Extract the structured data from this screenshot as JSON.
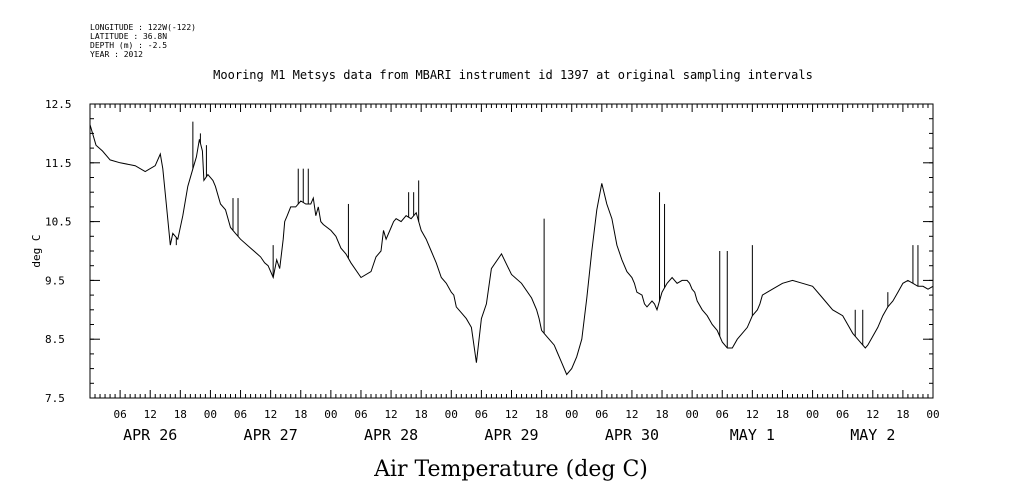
{
  "meta": {
    "longitude": "LONGITUDE : 122W(-122)",
    "latitude": "LATITUDE : 36.8N",
    "depth": "DEPTH (m) : -2.5",
    "year": "YEAR : 2012"
  },
  "chart_data": {
    "type": "line",
    "title": "Mooring M1 Metsys data from MBARI instrument id 1397 at original sampling intervals",
    "xlabel": "Air Temperature (deg C)",
    "ylabel": "deg C",
    "ylim": [
      7.5,
      12.5
    ],
    "yticks": [
      "12.5",
      "11.5",
      "10.5",
      "9.5",
      "8.5",
      "7.5"
    ],
    "xlim_hours": [
      0,
      168
    ],
    "hour_ticks": [
      "06",
      "12",
      "18",
      "00",
      "06",
      "12",
      "18",
      "00",
      "06",
      "12",
      "18",
      "00",
      "06",
      "12",
      "18",
      "00",
      "06",
      "12",
      "18",
      "00",
      "06",
      "12",
      "18",
      "00",
      "06",
      "12",
      "18",
      "00"
    ],
    "day_labels": [
      "APR 26",
      "APR 27",
      "APR 28",
      "APR 29",
      "APR 30",
      "MAY  1",
      "MAY  2"
    ],
    "line_color": "#000000",
    "grid": false,
    "series": [
      {
        "x": [
          0,
          1.2,
          2.5,
          4,
          6,
          9,
          11,
          13,
          14,
          14.5,
          15.2,
          16,
          16.5,
          17.5,
          18.5,
          19.5,
          20.5,
          21.2,
          21.8,
          22.4,
          22.7,
          23.5,
          24.5,
          25,
          26,
          27,
          28,
          29,
          30,
          32,
          34,
          34.8,
          35.5,
          36.5,
          37.2,
          37.8,
          38.5,
          38.8,
          39.3,
          40,
          41,
          42,
          43,
          44,
          44.5,
          45,
          45.5,
          46,
          46.5,
          48,
          49,
          50,
          51,
          52,
          54,
          56,
          57,
          58,
          58.5,
          59,
          60,
          60.5,
          61,
          62,
          63,
          64,
          65,
          66,
          67,
          68,
          69,
          70,
          71,
          72,
          72.5,
          73,
          74,
          75,
          76,
          77,
          78,
          79,
          80,
          82,
          84,
          86,
          88,
          89,
          89.5,
          90,
          91,
          92,
          92.5,
          93,
          94,
          95,
          96,
          97,
          98,
          99,
          100,
          101,
          102,
          103,
          104,
          105,
          106,
          107,
          108,
          108.5,
          109,
          110,
          110.5,
          111,
          112,
          112.5,
          113,
          114,
          115,
          116,
          117,
          118,
          118.5,
          119,
          119.5,
          120,
          120.5,
          121,
          122,
          123,
          124,
          125,
          126,
          127,
          128,
          129,
          130,
          131,
          132,
          133,
          133.5,
          134,
          136,
          138,
          140,
          142,
          144,
          146,
          148,
          150,
          151,
          152,
          153,
          154,
          154.5,
          155,
          156,
          157,
          158,
          159,
          160,
          161,
          162,
          163,
          164,
          165,
          166,
          167,
          168
        ],
        "y": [
          12.15,
          11.8,
          11.7,
          11.55,
          11.5,
          11.45,
          11.35,
          11.45,
          11.65,
          11.4,
          10.8,
          10.1,
          10.3,
          10.2,
          10.6,
          11.1,
          11.4,
          11.6,
          11.9,
          11.7,
          11.2,
          11.3,
          11.2,
          11.1,
          10.8,
          10.7,
          10.4,
          10.3,
          10.2,
          10.05,
          9.9,
          9.8,
          9.75,
          9.55,
          9.85,
          9.7,
          10.2,
          10.5,
          10.6,
          10.75,
          10.75,
          10.85,
          10.8,
          10.8,
          10.9,
          10.6,
          10.75,
          10.5,
          10.45,
          10.35,
          10.25,
          10.05,
          9.95,
          9.8,
          9.55,
          9.65,
          9.9,
          10.0,
          10.35,
          10.2,
          10.4,
          10.5,
          10.55,
          10.5,
          10.6,
          10.55,
          10.65,
          10.35,
          10.2,
          10.0,
          9.8,
          9.55,
          9.45,
          9.3,
          9.25,
          9.05,
          8.95,
          8.85,
          8.7,
          8.1,
          8.85,
          9.1,
          9.7,
          9.95,
          9.6,
          9.45,
          9.2,
          9.0,
          8.85,
          8.65,
          8.55,
          8.45,
          8.4,
          8.3,
          8.1,
          7.9,
          8.0,
          8.2,
          8.5,
          9.2,
          10.0,
          10.7,
          11.15,
          10.8,
          10.55,
          10.1,
          9.85,
          9.65,
          9.55,
          9.45,
          9.3,
          9.25,
          9.1,
          9.05,
          9.15,
          9.1,
          9.0,
          9.3,
          9.45,
          9.55,
          9.45,
          9.5,
          9.5,
          9.5,
          9.45,
          9.35,
          9.3,
          9.15,
          9.0,
          8.9,
          8.75,
          8.65,
          8.45,
          8.35,
          8.35,
          8.5,
          8.6,
          8.7,
          8.9,
          9.0,
          9.1,
          9.25,
          9.35,
          9.45,
          9.5,
          9.45,
          9.4,
          9.2,
          9.0,
          8.9,
          8.75,
          8.6,
          8.5,
          8.4,
          8.35,
          8.4,
          8.55,
          8.7,
          8.9,
          9.05,
          9.15,
          9.3,
          9.45,
          9.5,
          9.45,
          9.4,
          9.4,
          9.35,
          9.4
        ]
      }
    ],
    "spikes": [
      {
        "x": 17.2,
        "y": 10.1
      },
      {
        "x": 20.5,
        "y": 12.2
      },
      {
        "x": 22.0,
        "y": 12.0
      },
      {
        "x": 23.2,
        "y": 11.8
      },
      {
        "x": 28.5,
        "y": 10.9
      },
      {
        "x": 29.5,
        "y": 10.9
      },
      {
        "x": 36.5,
        "y": 10.1
      },
      {
        "x": 41.5,
        "y": 11.4
      },
      {
        "x": 42.5,
        "y": 11.4
      },
      {
        "x": 43.5,
        "y": 11.4
      },
      {
        "x": 51.5,
        "y": 10.8
      },
      {
        "x": 63.5,
        "y": 11.0
      },
      {
        "x": 64.5,
        "y": 11.0
      },
      {
        "x": 65.5,
        "y": 11.2
      },
      {
        "x": 90.5,
        "y": 10.55
      },
      {
        "x": 113.5,
        "y": 11.0
      },
      {
        "x": 114.5,
        "y": 10.8
      },
      {
        "x": 125.5,
        "y": 10.0
      },
      {
        "x": 127.0,
        "y": 10.0
      },
      {
        "x": 132.0,
        "y": 10.1
      },
      {
        "x": 152.5,
        "y": 9.0
      },
      {
        "x": 154.0,
        "y": 9.0
      },
      {
        "x": 159.0,
        "y": 9.3
      },
      {
        "x": 164.0,
        "y": 10.1
      },
      {
        "x": 165.0,
        "y": 10.1
      }
    ]
  }
}
